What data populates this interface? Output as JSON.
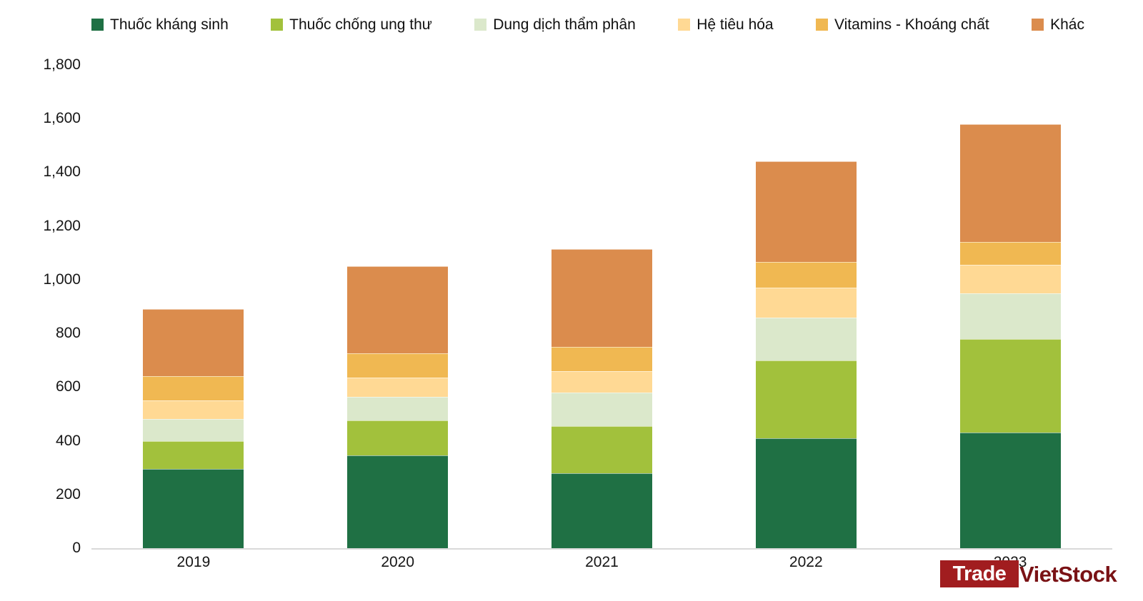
{
  "chart_data": {
    "type": "bar",
    "stacked": true,
    "title": "",
    "xlabel": "",
    "ylabel": "",
    "categories": [
      "2019",
      "2020",
      "2021",
      "2022",
      "2023"
    ],
    "series": [
      {
        "name": "Thuốc kháng sinh",
        "color": "#1F7044",
        "values": [
          295,
          345,
          280,
          410,
          430
        ]
      },
      {
        "name": "Thuốc chống ung thư",
        "color": "#A2C13C",
        "values": [
          105,
          130,
          175,
          290,
          350
        ]
      },
      {
        "name": "Dung dịch thẩm phân",
        "color": "#DBE8CB",
        "values": [
          80,
          90,
          125,
          160,
          170
        ]
      },
      {
        "name": "Hệ tiêu hóa",
        "color": "#FFD994",
        "values": [
          70,
          70,
          80,
          110,
          105
        ]
      },
      {
        "name": "Vitamins - Khoáng chất",
        "color": "#F0B852",
        "values": [
          90,
          90,
          90,
          95,
          85
        ]
      },
      {
        "name": "Khác",
        "color": "#DB8C4D",
        "values": [
          250,
          325,
          365,
          375,
          440
        ]
      }
    ],
    "totals": [
      890,
      1050,
      1115,
      1440,
      1580
    ],
    "ylim": [
      0,
      1800
    ],
    "grid": false,
    "legend_position": "top",
    "y_ticks": [
      {
        "value": 0,
        "label": "0"
      },
      {
        "value": 200,
        "label": "200"
      },
      {
        "value": 400,
        "label": "400"
      },
      {
        "value": 600,
        "label": "600"
      },
      {
        "value": 800,
        "label": "800"
      },
      {
        "value": 1000,
        "label": "1,000"
      },
      {
        "value": 1200,
        "label": "1,200"
      },
      {
        "value": 1400,
        "label": "1,400"
      },
      {
        "value": 1600,
        "label": "1,600"
      },
      {
        "value": 1800,
        "label": "1,800"
      }
    ]
  },
  "watermark": {
    "trade": "Trade",
    "vietstock": "VietStock",
    "box_color": "#A11D1F",
    "trade_text_color": "#FFFFFF",
    "vietstock_text_color": "#7A1215"
  }
}
